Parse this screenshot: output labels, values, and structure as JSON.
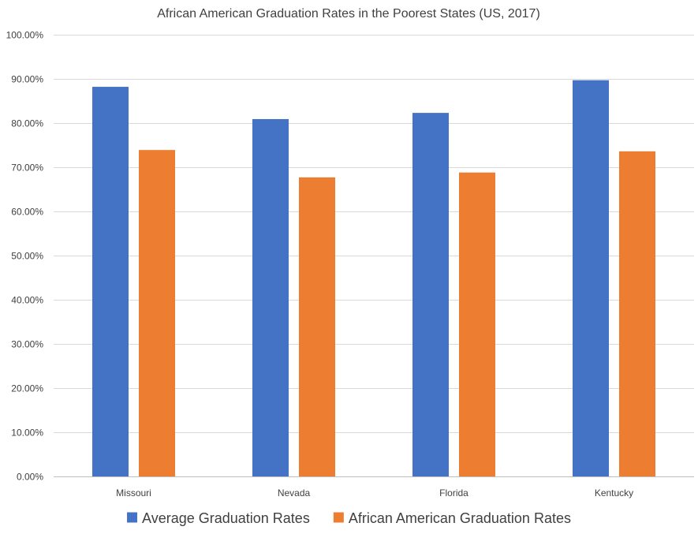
{
  "chart_data": {
    "type": "bar",
    "title": "African American Graduation Rates in the Poorest States (US, 2017)",
    "xlabel": "",
    "ylabel": "",
    "categories": [
      "Missouri",
      "Nevada",
      "Florida",
      "Kentucky"
    ],
    "series": [
      {
        "name": "Average Graduation Rates",
        "color": "#4472C4",
        "values": [
          88.2,
          80.9,
          82.3,
          89.7
        ]
      },
      {
        "name": "African American Graduation Rates",
        "color": "#ED7D31",
        "values": [
          73.9,
          67.7,
          68.8,
          73.6
        ]
      }
    ],
    "ylim": [
      0,
      100
    ],
    "yticks": [
      0,
      10,
      20,
      30,
      40,
      50,
      60,
      70,
      80,
      90,
      100
    ],
    "ytick_labels": [
      "0.00%",
      "10.00%",
      "20.00%",
      "30.00%",
      "40.00%",
      "50.00%",
      "60.00%",
      "70.00%",
      "80.00%",
      "90.00%",
      "100.00%"
    ],
    "grid": true,
    "legend_position": "bottom"
  }
}
